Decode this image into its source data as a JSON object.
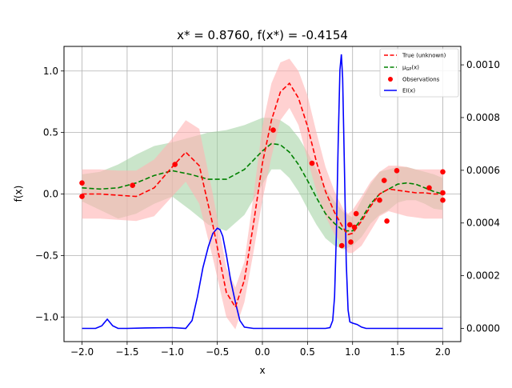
{
  "chart_data": {
    "type": "line",
    "title": "x* = 0.8760, f(x*) = -0.4154",
    "xlabel": "x",
    "ylabel": "f(x)",
    "xlim": [
      -2.2,
      2.2
    ],
    "ylim": [
      -1.2,
      1.2
    ],
    "y2lim": [
      -5e-05,
      0.00107
    ],
    "grid": true,
    "legend_position": "top-right",
    "x_ticks": [
      -2.0,
      -1.5,
      -1.0,
      -0.5,
      0.0,
      0.5,
      1.0,
      1.5,
      2.0
    ],
    "x_tick_labels": [
      "−2.0",
      "−1.5",
      "−1.0",
      "−0.5",
      "0.0",
      "0.5",
      "1.0",
      "1.5",
      "2.0"
    ],
    "y_ticks": [
      -1.0,
      -0.5,
      0.0,
      0.5,
      1.0
    ],
    "y_tick_labels": [
      "−1.0",
      "−0.5",
      "0.0",
      "0.5",
      "1.0"
    ],
    "y2_ticks": [
      0.0,
      0.0002,
      0.0004,
      0.0006,
      0.0008,
      0.001
    ],
    "y2_tick_labels": [
      "0.0000",
      "0.0002",
      "0.0004",
      "0.0006",
      "0.0008",
      "0.0010"
    ],
    "colors": {
      "true_line": "#ff0000",
      "true_band": "#ffb3b3",
      "gp_line": "#008000",
      "gp_band": "#9fd09f",
      "observations": "#ff0000",
      "ei_line": "#0000ff"
    },
    "legend": {
      "true": "True (unknown)",
      "gp": "μGP(x)",
      "gp_main": "μ",
      "gp_sub": "GP",
      "gp_suffix": "(x)",
      "obs": "Observations",
      "ei": "EI(x)"
    },
    "series": [
      {
        "name": "True (unknown)",
        "x": [
          -2.0,
          -1.8,
          -1.6,
          -1.4,
          -1.2,
          -1.0,
          -0.85,
          -0.7,
          -0.55,
          -0.4,
          -0.3,
          -0.2,
          -0.1,
          0.0,
          0.1,
          0.2,
          0.3,
          0.4,
          0.5,
          0.6,
          0.7,
          0.8,
          0.9,
          0.95,
          1.0,
          1.1,
          1.2,
          1.3,
          1.4,
          1.5,
          1.6,
          1.7,
          1.8,
          1.9,
          2.0
        ],
        "y": [
          0.0,
          0.0,
          -0.01,
          -0.02,
          0.05,
          0.22,
          0.34,
          0.23,
          -0.25,
          -0.8,
          -0.92,
          -0.7,
          -0.25,
          0.25,
          0.6,
          0.83,
          0.9,
          0.78,
          0.55,
          0.26,
          0.02,
          -0.15,
          -0.28,
          -0.33,
          -0.32,
          -0.22,
          -0.1,
          0.0,
          0.04,
          0.03,
          0.02,
          0.01,
          0.01,
          0.0,
          0.0
        ],
        "upper": [
          0.2,
          0.2,
          0.19,
          0.19,
          0.28,
          0.45,
          0.6,
          0.53,
          0.0,
          -0.6,
          -0.76,
          -0.55,
          -0.02,
          0.55,
          0.9,
          1.07,
          1.1,
          1.0,
          0.8,
          0.5,
          0.22,
          0.02,
          -0.13,
          -0.16,
          -0.13,
          -0.02,
          0.1,
          0.18,
          0.23,
          0.23,
          0.22,
          0.2,
          0.2,
          0.2,
          0.2
        ],
        "lower": [
          -0.2,
          -0.2,
          -0.21,
          -0.22,
          -0.18,
          -0.02,
          0.1,
          -0.08,
          -0.52,
          -1.0,
          -1.1,
          -0.88,
          -0.48,
          -0.05,
          0.3,
          0.6,
          0.7,
          0.56,
          0.28,
          0.02,
          -0.18,
          -0.33,
          -0.42,
          -0.48,
          -0.48,
          -0.42,
          -0.3,
          -0.18,
          -0.14,
          -0.16,
          -0.18,
          -0.19,
          -0.2,
          -0.2,
          -0.2
        ]
      },
      {
        "name": "μGP(x)",
        "x": [
          -2.0,
          -1.8,
          -1.6,
          -1.4,
          -1.2,
          -1.0,
          -0.8,
          -0.6,
          -0.4,
          -0.2,
          0.0,
          0.1,
          0.2,
          0.3,
          0.4,
          0.5,
          0.6,
          0.7,
          0.8,
          0.9,
          1.0,
          1.1,
          1.2,
          1.3,
          1.4,
          1.5,
          1.6,
          1.7,
          1.8,
          1.9,
          2.0
        ],
        "y": [
          0.05,
          0.04,
          0.05,
          0.09,
          0.15,
          0.19,
          0.16,
          0.12,
          0.12,
          0.2,
          0.35,
          0.41,
          0.4,
          0.34,
          0.24,
          0.11,
          -0.03,
          -0.16,
          -0.24,
          -0.3,
          -0.3,
          -0.2,
          -0.08,
          0.0,
          0.04,
          0.08,
          0.09,
          0.08,
          0.05,
          0.02,
          0.0
        ],
        "upper": [
          0.16,
          0.18,
          0.24,
          0.32,
          0.39,
          0.42,
          0.46,
          0.5,
          0.52,
          0.56,
          0.62,
          0.62,
          0.6,
          0.55,
          0.46,
          0.34,
          0.2,
          0.05,
          -0.06,
          -0.15,
          -0.19,
          -0.05,
          0.08,
          0.18,
          0.2,
          0.22,
          0.22,
          0.2,
          0.18,
          0.16,
          0.13
        ],
        "lower": [
          -0.06,
          -0.13,
          -0.2,
          -0.16,
          -0.08,
          -0.02,
          -0.13,
          -0.25,
          -0.3,
          -0.17,
          0.08,
          0.2,
          0.2,
          0.13,
          0.02,
          -0.12,
          -0.25,
          -0.36,
          -0.42,
          -0.45,
          -0.42,
          -0.35,
          -0.24,
          -0.17,
          -0.13,
          -0.07,
          -0.05,
          -0.05,
          -0.08,
          -0.12,
          -0.13
        ]
      },
      {
        "name": "EI(x)",
        "axis": "right",
        "x": [
          -2.0,
          -1.85,
          -1.78,
          -1.72,
          -1.66,
          -1.6,
          -1.5,
          -1.3,
          -1.0,
          -0.85,
          -0.78,
          -0.72,
          -0.66,
          -0.6,
          -0.55,
          -0.5,
          -0.47,
          -0.44,
          -0.4,
          -0.35,
          -0.3,
          -0.25,
          -0.2,
          -0.1,
          0.0,
          0.2,
          0.4,
          0.6,
          0.7,
          0.75,
          0.78,
          0.8,
          0.82,
          0.84,
          0.86,
          0.876,
          0.89,
          0.91,
          0.93,
          0.95,
          0.97,
          1.0,
          1.05,
          1.1,
          1.15,
          1.2,
          1.4,
          1.7,
          2.0
        ],
        "y": [
          0.0,
          0.0,
          1e-05,
          3.5e-05,
          1e-05,
          0.0,
          0.0,
          2e-06,
          3e-06,
          0.0,
          3e-05,
          0.00012,
          0.00023,
          0.00031,
          0.00036,
          0.00038,
          0.000375,
          0.00035,
          0.00028,
          0.00018,
          0.0001,
          3e-05,
          5e-06,
          0.0,
          0.0,
          0.0,
          0.0,
          0.0,
          0.0,
          3e-06,
          3e-05,
          0.00012,
          0.00035,
          0.0007,
          0.00098,
          0.00104,
          0.00095,
          0.0006,
          0.00025,
          7e-05,
          2.5e-05,
          2e-05,
          1.5e-05,
          5e-06,
          0.0,
          0.0,
          0.0,
          0.0,
          0.0
        ]
      },
      {
        "name": "Observations",
        "type": "scatter",
        "x": [
          -2.0,
          -2.0,
          -1.44,
          -0.97,
          0.12,
          0.55,
          0.88,
          0.97,
          0.98,
          1.02,
          1.04,
          1.3,
          1.35,
          1.38,
          1.49,
          1.85,
          2.0,
          2.0,
          2.0
        ],
        "y": [
          0.09,
          -0.02,
          0.07,
          0.24,
          0.52,
          0.25,
          -0.42,
          -0.25,
          -0.39,
          -0.27,
          -0.16,
          -0.05,
          0.11,
          -0.22,
          0.19,
          0.05,
          0.18,
          0.01,
          -0.05
        ]
      }
    ]
  }
}
